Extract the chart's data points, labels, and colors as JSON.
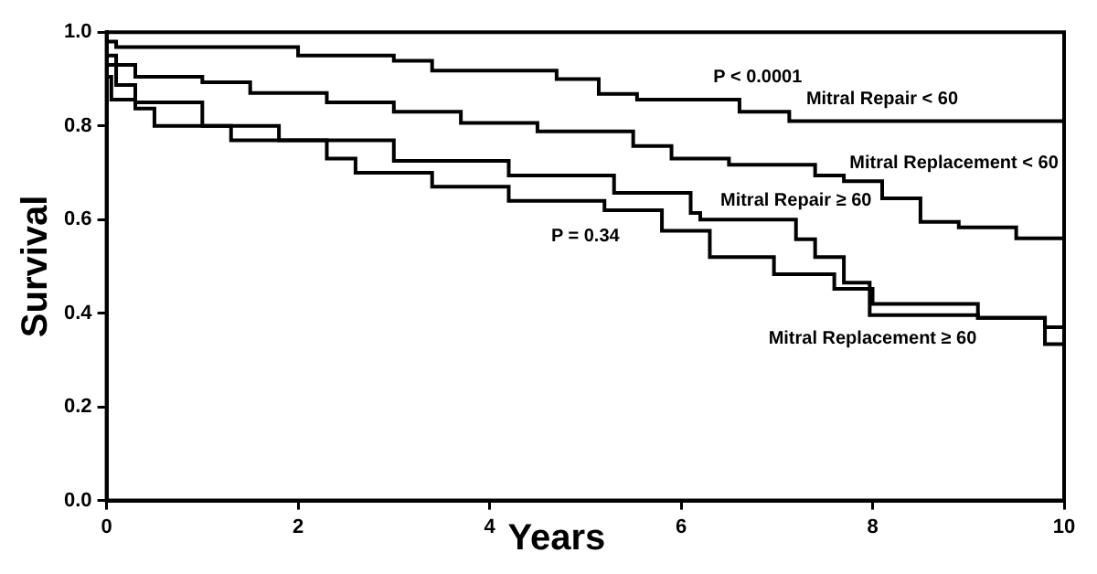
{
  "chart_data": {
    "type": "step",
    "xlabel": "Years",
    "ylabel": "Survival",
    "xlim": [
      0,
      10
    ],
    "xticks": [
      0,
      2,
      4,
      6,
      8,
      10
    ],
    "ylim": [
      0,
      1
    ],
    "yticks": [
      {
        "value": 0,
        "label": "0.0"
      },
      0.2,
      0.4,
      0.6,
      0.8,
      {
        "value": 1,
        "label": "1.0"
      }
    ],
    "grid": false,
    "legend": false,
    "line_style": "solid",
    "marker": "none",
    "annotations": [
      "P < 0.0001",
      "P = 0.34"
    ],
    "series": [
      {
        "name": "Mitral Repair < 60",
        "color": "#000000",
        "x": [
          0,
          0.1,
          2,
          3,
          3.4,
          4.7,
          5.14,
          5.54,
          6.61,
          7.13,
          8.37,
          10
        ],
        "values": [
          1,
          0.98,
          0.968,
          0.95,
          0.939,
          0.918,
          0.9,
          0.868,
          0.856,
          0.83,
          0.81,
          0.81
        ]
      },
      {
        "name": "Mitral Replacement < 60",
        "color": "#000000",
        "x": [
          0,
          0.1,
          0.3,
          1,
          1.5,
          2.3,
          3,
          3.7,
          4.5,
          5.5,
          5.9,
          6.5,
          7.4,
          7.7,
          8.1,
          8.5,
          8.9,
          9.5,
          9.6,
          10
        ],
        "values": [
          1,
          0.95,
          0.93,
          0.905,
          0.893,
          0.87,
          0.85,
          0.83,
          0.806,
          0.788,
          0.757,
          0.73,
          0.717,
          0.694,
          0.682,
          0.645,
          0.595,
          0.583,
          0.56,
          0.56
        ]
      },
      {
        "name": "Mitral Repair ≥ 60",
        "color": "#000000",
        "x": [
          0,
          0.1,
          0.3,
          1,
          1.8,
          3,
          4.2,
          5.3,
          6.1,
          6.2,
          7.2,
          7.4,
          7.7,
          7.97,
          9.1,
          9.8,
          10
        ],
        "values": [
          1,
          0.93,
          0.887,
          0.85,
          0.8,
          0.769,
          0.725,
          0.694,
          0.657,
          0.614,
          0.6,
          0.558,
          0.52,
          0.465,
          0.396,
          0.39,
          0.37
        ]
      },
      {
        "name": "Mitral Replacement ≥ 60",
        "color": "#000000",
        "x": [
          0,
          0.05,
          0.3,
          0.5,
          1.3,
          2.3,
          2.6,
          3.4,
          4.2,
          5.2,
          5.8,
          6.3,
          6.97,
          7.6,
          8,
          9.1,
          9.8,
          9.85,
          10
        ],
        "values": [
          1,
          0.905,
          0.856,
          0.837,
          0.8,
          0.769,
          0.73,
          0.7,
          0.67,
          0.64,
          0.62,
          0.576,
          0.52,
          0.483,
          0.452,
          0.42,
          0.39,
          0.334,
          0.334
        ]
      }
    ]
  }
}
